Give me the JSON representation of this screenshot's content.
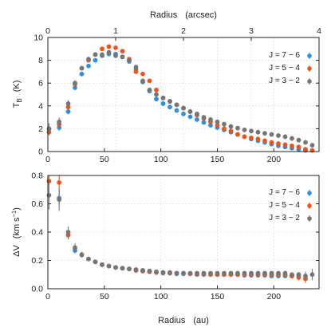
{
  "chart_data": [
    {
      "type": "scatter",
      "xlabel": "Radius",
      "xunit": "(au)",
      "ylabel_symbol": "T",
      "ylabel_sub": "B",
      "yunit": "(K)",
      "top_axis_label": "Radius",
      "top_axis_unit": "(arcsec)",
      "xlim": [
        0,
        240
      ],
      "ylim": [
        0,
        10
      ],
      "top_xlim": [
        0,
        4
      ],
      "xticks": [
        0,
        50,
        100,
        150,
        200
      ],
      "yticks": [
        0,
        2,
        4,
        6,
        8,
        10
      ],
      "top_xticks": [
        0,
        1,
        2,
        3,
        4
      ],
      "grid": true,
      "legend_position": "upper-right",
      "series": [
        {
          "name": "J = 7 − 6",
          "color": "#2e8fe0",
          "x": [
            1,
            10,
            18,
            24,
            30,
            36,
            42,
            48,
            54,
            60,
            66,
            72,
            78,
            84,
            90,
            96,
            102,
            108,
            114,
            120,
            126,
            132,
            138,
            144,
            150,
            156,
            162,
            168,
            174,
            180,
            186,
            192,
            198,
            204,
            210,
            216,
            222,
            228
          ],
          "y": [
            2.0,
            2.1,
            3.5,
            5.6,
            6.8,
            7.5,
            8.0,
            8.4,
            8.55,
            8.55,
            8.3,
            7.9,
            7.2,
            6.1,
            5.3,
            4.6,
            4.2,
            3.9,
            3.6,
            3.3,
            3.05,
            2.8,
            2.55,
            2.3,
            2.1,
            1.9,
            1.7,
            1.5,
            1.3,
            1.1,
            0.95,
            0.8,
            0.65,
            0.5,
            0.4,
            0.3,
            0.2,
            0.1
          ],
          "yerr": [
            0.3,
            0.3,
            0.25,
            0.2,
            0.2,
            0.15,
            0.15,
            0.15,
            0.15,
            0.15,
            0.15,
            0.15,
            0.15,
            0.15,
            0.15,
            0.15,
            0.15,
            0.15,
            0.15,
            0.15,
            0.15,
            0.15,
            0.15,
            0.15,
            0.15,
            0.15,
            0.15,
            0.15,
            0.15,
            0.15,
            0.15,
            0.15,
            0.15,
            0.15,
            0.15,
            0.15,
            0.15,
            0.15
          ]
        },
        {
          "name": "J = 5 − 4",
          "color": "#f0531a",
          "x": [
            1,
            10,
            18,
            24,
            30,
            36,
            42,
            48,
            54,
            60,
            66,
            72,
            78,
            84,
            90,
            96,
            102,
            108,
            114,
            120,
            126,
            132,
            138,
            144,
            150,
            156,
            162,
            168,
            174,
            180,
            186,
            192,
            198,
            204,
            210,
            216,
            222,
            228,
            234
          ],
          "y": [
            1.7,
            2.4,
            3.9,
            5.9,
            7.3,
            8.0,
            8.5,
            9.0,
            9.2,
            9.1,
            8.8,
            8.1,
            7.0,
            6.8,
            6.2,
            5.4,
            4.7,
            4.4,
            4.1,
            3.8,
            3.5,
            3.2,
            2.9,
            2.6,
            2.3,
            2.0,
            1.8,
            1.5,
            1.3,
            1.2,
            1.1,
            0.95,
            0.8,
            0.7,
            0.6,
            0.5,
            0.4,
            0.2,
            0.1
          ],
          "yerr": [
            0.3,
            0.3,
            0.25,
            0.2,
            0.2,
            0.15,
            0.15,
            0.15,
            0.15,
            0.15,
            0.15,
            0.15,
            0.15,
            0.15,
            0.15,
            0.15,
            0.15,
            0.15,
            0.15,
            0.15,
            0.15,
            0.15,
            0.15,
            0.15,
            0.15,
            0.15,
            0.15,
            0.15,
            0.15,
            0.15,
            0.15,
            0.15,
            0.15,
            0.15,
            0.15,
            0.15,
            0.15,
            0.15,
            0.15
          ]
        },
        {
          "name": "J = 3 − 2",
          "color": "#767676",
          "x": [
            1,
            10,
            18,
            24,
            30,
            36,
            42,
            48,
            54,
            60,
            66,
            72,
            78,
            84,
            90,
            96,
            102,
            108,
            114,
            120,
            126,
            132,
            138,
            144,
            150,
            156,
            162,
            168,
            174,
            180,
            186,
            192,
            198,
            204,
            210,
            216,
            222,
            228,
            234
          ],
          "y": [
            2.0,
            2.6,
            4.2,
            6.0,
            7.3,
            8.1,
            8.5,
            8.5,
            8.7,
            8.4,
            8.3,
            8.0,
            7.4,
            6.2,
            5.4,
            5.0,
            4.7,
            4.4,
            4.1,
            3.8,
            3.5,
            3.3,
            3.0,
            2.8,
            2.6,
            2.4,
            2.2,
            2.05,
            1.9,
            1.8,
            1.7,
            1.6,
            1.5,
            1.4,
            1.3,
            1.15,
            1.0,
            0.8,
            0.55
          ],
          "yerr": [
            0.5,
            0.4,
            0.3,
            0.25,
            0.2,
            0.2,
            0.2,
            0.2,
            0.2,
            0.2,
            0.2,
            0.2,
            0.2,
            0.2,
            0.2,
            0.2,
            0.2,
            0.2,
            0.2,
            0.2,
            0.2,
            0.2,
            0.2,
            0.2,
            0.2,
            0.2,
            0.2,
            0.2,
            0.2,
            0.2,
            0.2,
            0.2,
            0.2,
            0.2,
            0.2,
            0.2,
            0.2,
            0.2,
            0.2
          ]
        }
      ]
    },
    {
      "type": "scatter",
      "xlabel": "Radius",
      "xunit": "(au)",
      "ylabel_symbol": "ΔV",
      "yunit_prefix": "(km s",
      "yunit_exp": "−1",
      "yunit_suffix": ")",
      "xlim": [
        0,
        240
      ],
      "ylim": [
        0,
        0.8
      ],
      "xticks": [
        0,
        50,
        100,
        150,
        200
      ],
      "yticks": [
        0.0,
        0.2,
        0.4,
        0.6,
        0.8
      ],
      "ytick_labels": [
        "0.0",
        "0.2",
        "0.4",
        "0.6",
        "0.8"
      ],
      "grid": true,
      "legend_position": "upper-right",
      "series": [
        {
          "name": "J = 7 − 6",
          "color": "#2e8fe0",
          "x": [
            10,
            18,
            24,
            30,
            36,
            42,
            48,
            54,
            60,
            66,
            72,
            78,
            84,
            90,
            96,
            102,
            108,
            114,
            120,
            126,
            132,
            138,
            144,
            150,
            156,
            162,
            168,
            174,
            180,
            186,
            192,
            198,
            204,
            210,
            216,
            222
          ],
          "y": [
            0.64,
            0.38,
            0.27,
            0.24,
            0.21,
            0.19,
            0.17,
            0.16,
            0.15,
            0.145,
            0.14,
            0.13,
            0.125,
            0.12,
            0.115,
            0.11,
            0.11,
            0.105,
            0.105,
            0.105,
            0.1,
            0.1,
            0.1,
            0.1,
            0.1,
            0.1,
            0.1,
            0.095,
            0.095,
            0.095,
            0.095,
            0.09,
            0.09,
            0.09,
            0.09,
            0.09
          ],
          "yerr": [
            0.05,
            0.03,
            0.02,
            0.02,
            0.015,
            0.01,
            0.01,
            0.01,
            0.01,
            0.01,
            0.01,
            0.01,
            0.01,
            0.01,
            0.01,
            0.01,
            0.01,
            0.01,
            0.01,
            0.01,
            0.01,
            0.01,
            0.01,
            0.01,
            0.01,
            0.01,
            0.01,
            0.01,
            0.01,
            0.01,
            0.01,
            0.01,
            0.01,
            0.01,
            0.015,
            0.015
          ]
        },
        {
          "name": "J = 5 − 4",
          "color": "#f0531a",
          "x": [
            1,
            10,
            18,
            24,
            30,
            36,
            42,
            48,
            54,
            60,
            66,
            72,
            78,
            84,
            90,
            96,
            102,
            108,
            114,
            120,
            126,
            132,
            138,
            144,
            150,
            156,
            162,
            168,
            174,
            180,
            186,
            192,
            198,
            204,
            210,
            216,
            222,
            228
          ],
          "y": [
            0.76,
            0.75,
            0.38,
            0.29,
            0.24,
            0.21,
            0.19,
            0.17,
            0.16,
            0.15,
            0.145,
            0.14,
            0.13,
            0.125,
            0.12,
            0.115,
            0.115,
            0.11,
            0.11,
            0.11,
            0.105,
            0.105,
            0.105,
            0.1,
            0.1,
            0.1,
            0.1,
            0.1,
            0.1,
            0.1,
            0.1,
            0.1,
            0.1,
            0.1,
            0.1,
            0.09,
            0.08,
            0.07
          ],
          "yerr": [
            0.12,
            0.07,
            0.03,
            0.02,
            0.02,
            0.015,
            0.01,
            0.01,
            0.01,
            0.01,
            0.01,
            0.01,
            0.01,
            0.01,
            0.01,
            0.01,
            0.01,
            0.01,
            0.01,
            0.01,
            0.01,
            0.01,
            0.01,
            0.01,
            0.01,
            0.01,
            0.01,
            0.01,
            0.01,
            0.01,
            0.01,
            0.01,
            0.01,
            0.01,
            0.015,
            0.015,
            0.02,
            0.03
          ]
        },
        {
          "name": "J = 3 − 2",
          "color": "#767676",
          "x": [
            1,
            10,
            18,
            24,
            30,
            36,
            42,
            48,
            54,
            60,
            66,
            72,
            78,
            84,
            90,
            96,
            102,
            108,
            114,
            120,
            126,
            132,
            138,
            144,
            150,
            156,
            162,
            168,
            174,
            180,
            186,
            192,
            198,
            204,
            210,
            216,
            222,
            228,
            234
          ],
          "y": [
            0.66,
            0.63,
            0.4,
            0.29,
            0.24,
            0.21,
            0.19,
            0.17,
            0.16,
            0.15,
            0.145,
            0.14,
            0.135,
            0.13,
            0.125,
            0.12,
            0.115,
            0.115,
            0.11,
            0.11,
            0.11,
            0.11,
            0.11,
            0.11,
            0.11,
            0.11,
            0.11,
            0.11,
            0.11,
            0.11,
            0.11,
            0.11,
            0.11,
            0.11,
            0.11,
            0.1,
            0.1,
            0.09,
            0.1
          ],
          "yerr": [
            0.1,
            0.08,
            0.04,
            0.03,
            0.02,
            0.015,
            0.01,
            0.01,
            0.01,
            0.01,
            0.01,
            0.01,
            0.01,
            0.01,
            0.01,
            0.01,
            0.01,
            0.01,
            0.01,
            0.01,
            0.01,
            0.01,
            0.01,
            0.01,
            0.01,
            0.01,
            0.01,
            0.01,
            0.01,
            0.01,
            0.01,
            0.01,
            0.01,
            0.01,
            0.015,
            0.015,
            0.02,
            0.03,
            0.04
          ]
        }
      ]
    }
  ]
}
